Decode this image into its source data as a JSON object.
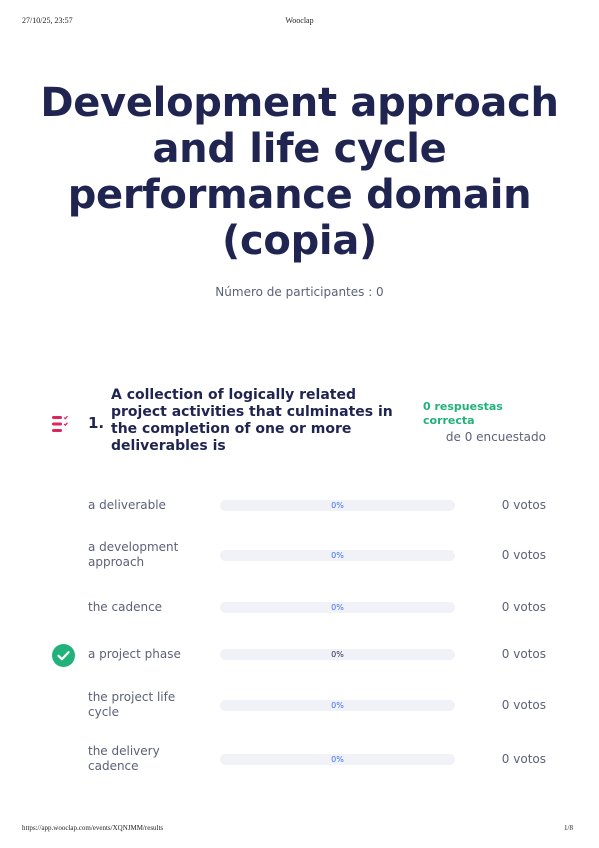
{
  "print_header": {
    "datetime": "27/10/25, 23:57",
    "site": "Wooclap"
  },
  "title": "Development approach and life cycle performance domain (copia)",
  "participants": "Número de participantes : 0",
  "question": {
    "number": "1.",
    "text": "A collection of logically related project activities that culminates in the completion of one or more deliverables is",
    "correct": "0 respuestas correcta",
    "respondents": "de 0 encuestado",
    "options": [
      {
        "label": "a deliverable",
        "percent": "0%",
        "votes": "0 votos",
        "correct": false
      },
      {
        "label": "a development approach",
        "percent": "0%",
        "votes": "0 votos",
        "correct": false
      },
      {
        "label": "the cadence",
        "percent": "0%",
        "votes": "0 votos",
        "correct": false
      },
      {
        "label": "a project phase",
        "percent": "0%",
        "votes": "0 votos",
        "correct": true
      },
      {
        "label": "the project life cycle",
        "percent": "0%",
        "votes": "0 votos",
        "correct": false
      },
      {
        "label": "the delivery cadence",
        "percent": "0%",
        "votes": "0 votos",
        "correct": false
      }
    ]
  },
  "print_footer": {
    "url": "https://app.wooclap.com/events/XQNJMM/results",
    "page": "1/8"
  },
  "colors": {
    "accent_correct": "#20b27a",
    "title": "#1f2450",
    "percent": "#3b6ff0",
    "icon": "#e0245e"
  },
  "icons": {
    "question_type": "list-check-icon",
    "correct": "check-circle-icon"
  }
}
